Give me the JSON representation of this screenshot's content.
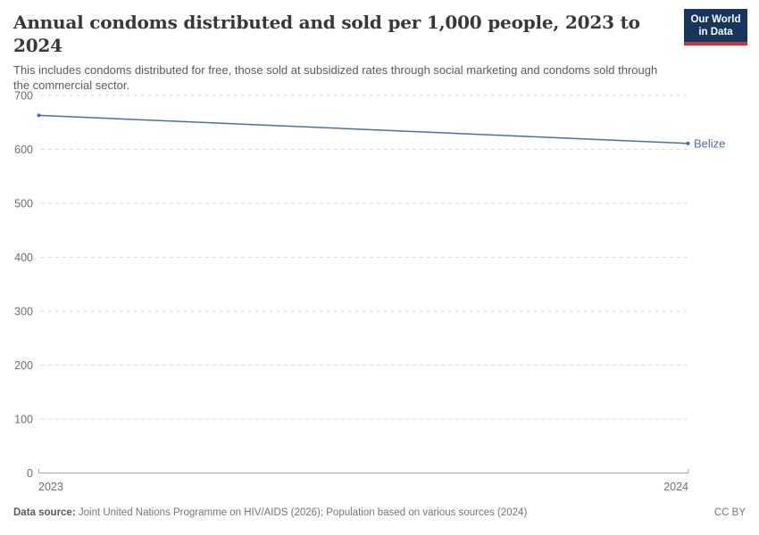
{
  "header": {
    "title": "Annual condoms distributed and sold per 1,000 people, 2023 to 2024",
    "subtitle": "This includes condoms distributed for free, those sold at subsidized rates through social marketing and condoms sold through the commercial sector."
  },
  "logo": {
    "line1": "Our World",
    "line2": "in Data",
    "background_color": "#16365e",
    "accent_color": "#d0342c"
  },
  "chart_data": {
    "type": "line",
    "title": "Annual condoms distributed and sold per 1,000 people, 2023 to 2024",
    "x": [
      2023,
      2024
    ],
    "xticklabels": [
      "2023",
      "2024"
    ],
    "series": [
      {
        "name": "Belize",
        "values": [
          663,
          611
        ],
        "color": "#4c6ea6"
      }
    ],
    "ylim": [
      0,
      700
    ],
    "yticks": [
      0,
      100,
      200,
      300,
      400,
      500,
      600,
      700
    ],
    "xlabel": "",
    "ylabel": "",
    "grid": "horizontal-dashed",
    "legend_position": "right-of-line",
    "grid_color": "#dadada",
    "axis_color": "#a8a8a8",
    "tick_label_color": "#6e6e6e"
  },
  "footer": {
    "source_label": "Data source:",
    "source_text": " Joint United Nations Programme on HIV/AIDS (2026); Population based on various sources (2024)",
    "license": "CC BY"
  }
}
